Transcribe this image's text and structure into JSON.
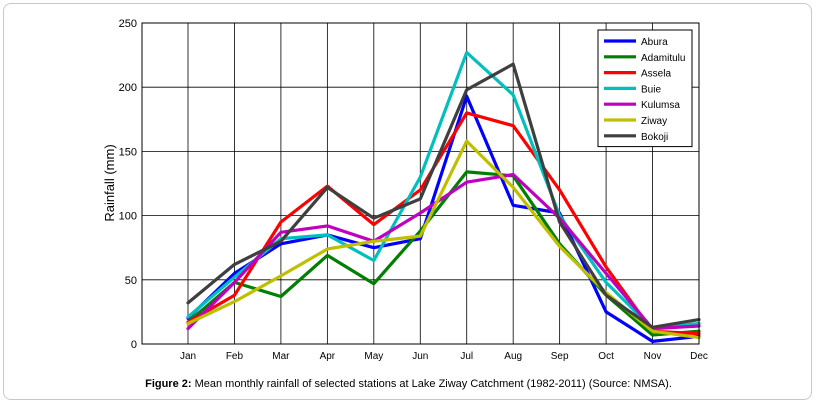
{
  "chart_data": {
    "type": "line",
    "title": "",
    "xlabel": "",
    "ylabel": "Rainfall (mm)",
    "categories": [
      "Jan",
      "Feb",
      "Mar",
      "Apr",
      "May",
      "Jun",
      "Jul",
      "Aug",
      "Sep",
      "Oct",
      "Nov",
      "Dec"
    ],
    "ylim": [
      0,
      250
    ],
    "yticks": [
      0,
      50,
      100,
      150,
      200,
      250
    ],
    "grid": true,
    "legend_position": "top-right",
    "series": [
      {
        "name": "Abura",
        "color": "#0000ff",
        "values": [
          20,
          55,
          78,
          85,
          75,
          82,
          193,
          108,
          102,
          25,
          2,
          6
        ]
      },
      {
        "name": "Adamitulu",
        "color": "#007f00",
        "values": [
          17,
          48,
          37,
          69,
          47,
          88,
          134,
          131,
          78,
          38,
          7,
          10
        ]
      },
      {
        "name": "Assela",
        "color": "#ff0000",
        "values": [
          17,
          38,
          95,
          123,
          93,
          120,
          180,
          170,
          120,
          60,
          10,
          8
        ]
      },
      {
        "name": "Buie",
        "color": "#00bfbf",
        "values": [
          21,
          52,
          82,
          85,
          65,
          130,
          227,
          194,
          100,
          48,
          12,
          16
        ]
      },
      {
        "name": "Kulumsa",
        "color": "#bf00bf",
        "values": [
          12,
          48,
          87,
          92,
          80,
          102,
          126,
          132,
          98,
          55,
          12,
          14
        ]
      },
      {
        "name": "Ziway",
        "color": "#bfbf00",
        "values": [
          16,
          33,
          53,
          74,
          80,
          84,
          158,
          122,
          76,
          40,
          10,
          5
        ]
      },
      {
        "name": "Bokoji",
        "color": "#3f3f3f",
        "values": [
          32,
          62,
          80,
          122,
          98,
          113,
          198,
          218,
          95,
          38,
          13,
          19
        ]
      }
    ]
  },
  "caption": {
    "label": "Figure 2:",
    "text": " Mean monthly rainfall of selected stations at Lake Ziway Catchment (1982-2011) (Source: NMSA)."
  }
}
